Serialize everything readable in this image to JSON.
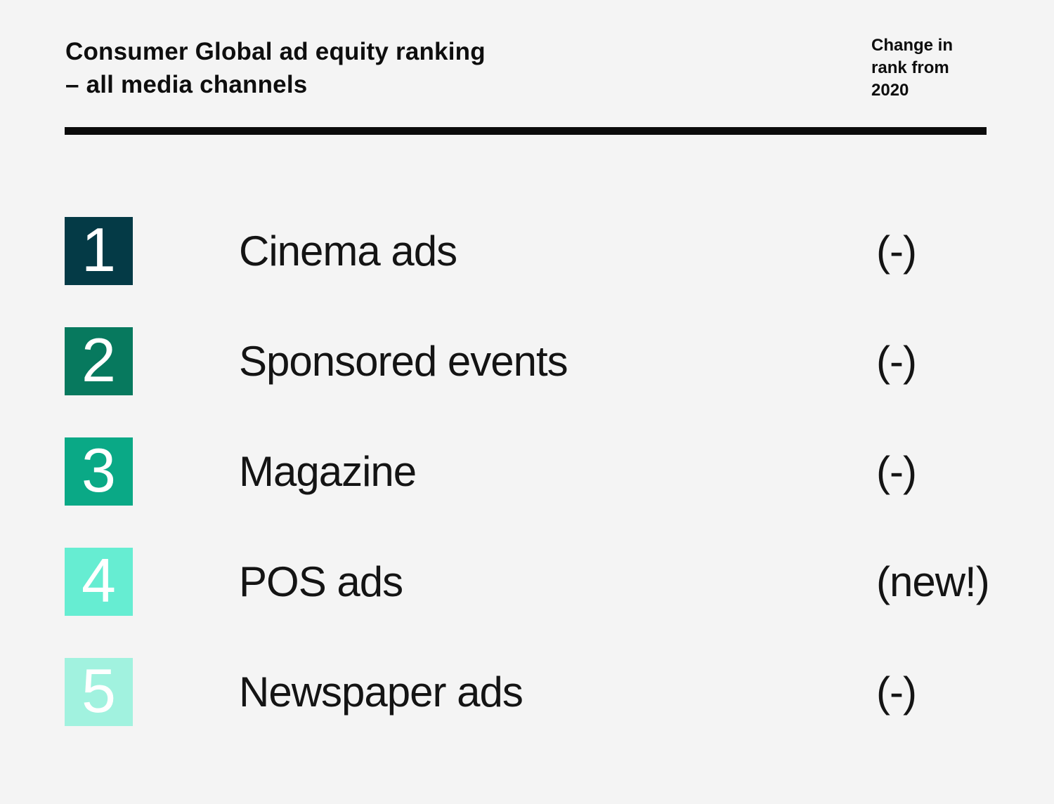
{
  "page": {
    "background": "#f4f4f4",
    "rule_color": "#0b0b0b",
    "text_color": "#141414"
  },
  "header": {
    "title_line1": "Consumer Global ad equity ranking",
    "title_line2": "– all media channels",
    "change_column_header": "Change in rank from 2020"
  },
  "chart_data": {
    "type": "table",
    "title": "Consumer Global ad equity ranking – all media channels",
    "columns": [
      "rank",
      "media_channel",
      "change_in_rank_from_2020"
    ],
    "rows": [
      {
        "rank": "1",
        "channel": "Cinema ads",
        "change": "(-)",
        "color": "#043a46"
      },
      {
        "rank": "2",
        "channel": "Sponsored events",
        "change": "(-)",
        "color": "#07795e"
      },
      {
        "rank": "3",
        "channel": "Magazine",
        "change": "(-)",
        "color": "#0aa986"
      },
      {
        "rank": "4",
        "channel": "POS ads",
        "change": "(new!)",
        "color": "#66edd2"
      },
      {
        "rank": "5",
        "channel": "Newspaper ads",
        "change": "(-)",
        "color": "#a1f2df"
      }
    ]
  }
}
